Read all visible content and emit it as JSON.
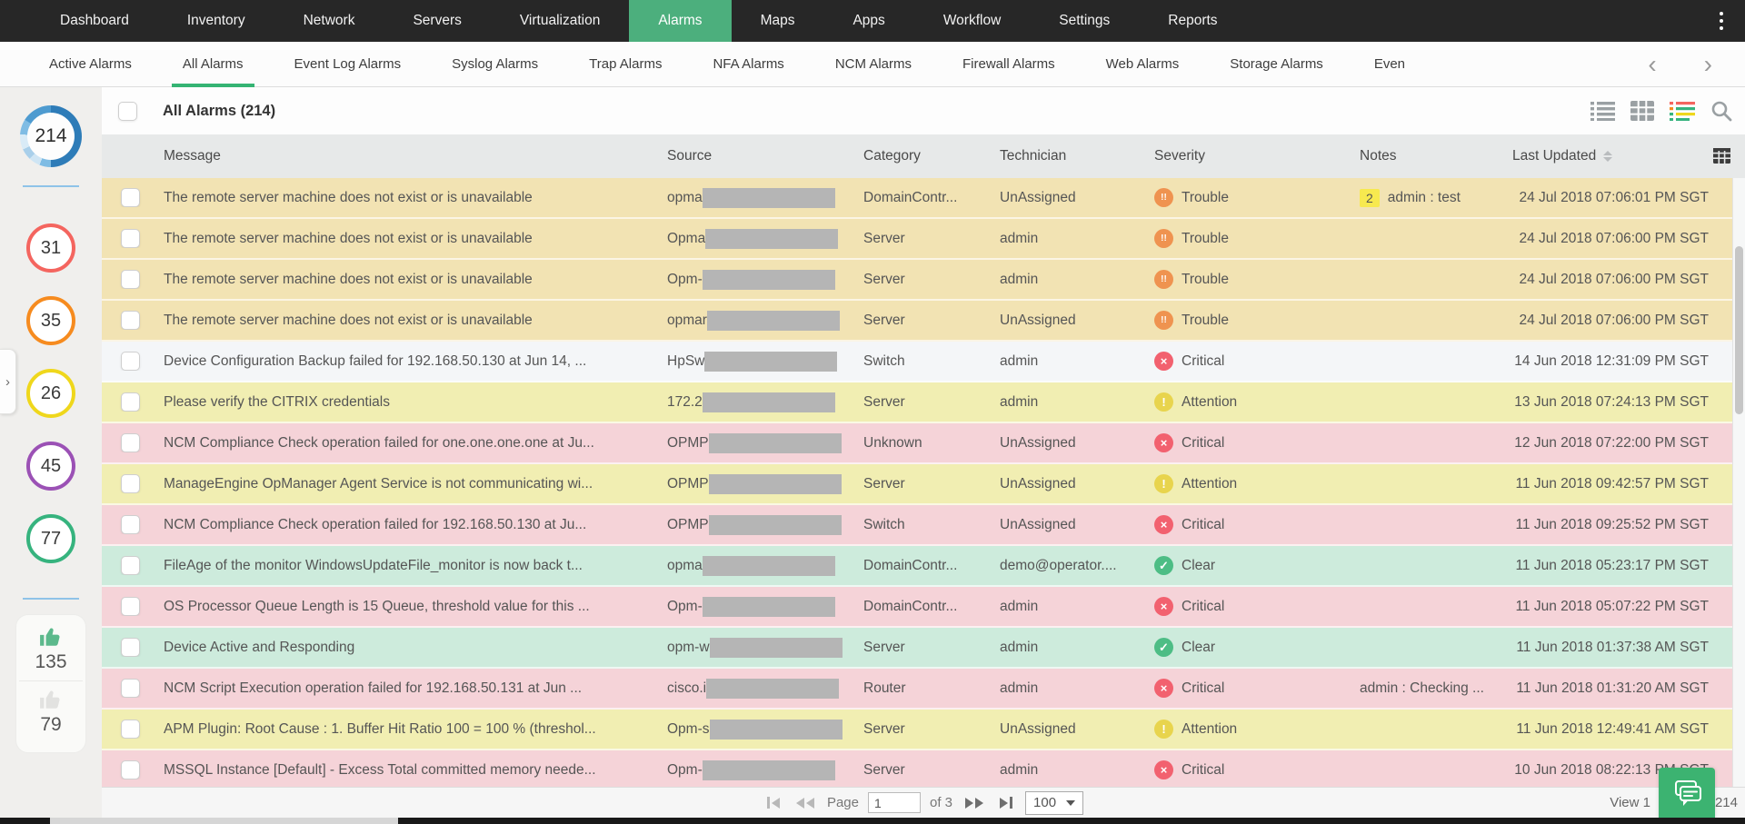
{
  "app": {
    "accent_green": "#4CAF7D"
  },
  "topnav": {
    "items": [
      "Dashboard",
      "Inventory",
      "Network",
      "Servers",
      "Virtualization",
      "Alarms",
      "Maps",
      "Apps",
      "Workflow",
      "Settings",
      "Reports"
    ],
    "active": "Alarms"
  },
  "tabbar": {
    "items": [
      "Active Alarms",
      "All Alarms",
      "Event Log Alarms",
      "Syslog Alarms",
      "Trap Alarms",
      "NFA Alarms",
      "NCM Alarms",
      "Firewall Alarms",
      "Web Alarms",
      "Storage Alarms",
      "Even"
    ],
    "active": "All Alarms",
    "scroll_left": "‹",
    "scroll_right": "›"
  },
  "sidebar": {
    "total_alarms": "214",
    "donut_colors": [
      "#2E7CB8",
      "#7FBCE4",
      "#CFE5F4",
      "#A9CFEA",
      "#D9EBF7",
      "#4E9BD0"
    ],
    "counters": [
      {
        "name": "critical",
        "value": "31",
        "color": "#F4655F"
      },
      {
        "name": "trouble",
        "value": "35",
        "color": "#F68B1F"
      },
      {
        "name": "attention",
        "value": "26",
        "color": "#EFD71C"
      },
      {
        "name": "service-down",
        "value": "45",
        "color": "#9B51B5"
      },
      {
        "name": "clear",
        "value": "77",
        "color": "#36B37E"
      }
    ],
    "acknowledged_count": "135",
    "unacknowledged_count": "79"
  },
  "toolbar": {
    "title": "All Alarms (214)"
  },
  "table": {
    "columns": [
      "Message",
      "Source",
      "Category",
      "Technician",
      "Severity",
      "Notes",
      "Last Updated"
    ],
    "severity_styles": {
      "Trouble": {
        "icon_color": "#EF9350",
        "glyph": "!!"
      },
      "Critical": {
        "icon_color": "#F2616F",
        "glyph": "×"
      },
      "Attention": {
        "icon_color": "#E8D44D",
        "glyph": "!"
      },
      "Clear": {
        "icon_color": "#4DBD85",
        "glyph": "✓"
      }
    },
    "rows": [
      {
        "message": "The remote server machine does not exist or is unavailable",
        "source_prefix": "opma",
        "category": "DomainContr...",
        "technician": "UnAssigned",
        "severity": "Trouble",
        "notes_badge": "2",
        "notes": "admin : test",
        "last_updated": "24 Jul 2018 07:06:01 PM SGT",
        "row_bg": "#F2E3B3"
      },
      {
        "message": "The remote server machine does not exist or is unavailable",
        "source_prefix": "Opma",
        "category": "Server",
        "technician": "admin",
        "severity": "Trouble",
        "notes_badge": "",
        "notes": "",
        "last_updated": "24 Jul 2018 07:06:00 PM SGT",
        "row_bg": "#F2E3B3"
      },
      {
        "message": "The remote server machine does not exist or is unavailable",
        "source_prefix": "Opm-",
        "category": "Server",
        "technician": "admin",
        "severity": "Trouble",
        "notes_badge": "",
        "notes": "",
        "last_updated": "24 Jul 2018 07:06:00 PM SGT",
        "row_bg": "#F2E3B3"
      },
      {
        "message": "The remote server machine does not exist or is unavailable",
        "source_prefix": "opmar",
        "category": "Server",
        "technician": "UnAssigned",
        "severity": "Trouble",
        "notes_badge": "",
        "notes": "",
        "last_updated": "24 Jul 2018 07:06:00 PM SGT",
        "row_bg": "#F2E3B3"
      },
      {
        "message": "Device Configuration Backup failed for 192.168.50.130 at Jun 14, ...",
        "source_prefix": "HpSw",
        "category": "Switch",
        "technician": "admin",
        "severity": "Critical",
        "notes_badge": "",
        "notes": "",
        "last_updated": "14 Jun 2018 12:31:09 PM SGT",
        "row_bg": "#F4F6F8"
      },
      {
        "message": "Please verify the CITRIX credentials",
        "source_prefix": "172.2",
        "category": "Server",
        "technician": "admin",
        "severity": "Attention",
        "notes_badge": "",
        "notes": "",
        "last_updated": "13 Jun 2018 07:24:13 PM SGT",
        "row_bg": "#F1EEB2"
      },
      {
        "message": "NCM Compliance Check operation failed for one.one.one.one at Ju...",
        "source_prefix": "OPMP",
        "category": "Unknown",
        "technician": "UnAssigned",
        "severity": "Critical",
        "notes_badge": "",
        "notes": "",
        "last_updated": "12 Jun 2018 07:22:00 PM SGT",
        "row_bg": "#F5D3D8"
      },
      {
        "message": "ManageEngine OpManager Agent Service is not communicating wi...",
        "source_prefix": "OPMP",
        "category": "Server",
        "technician": "UnAssigned",
        "severity": "Attention",
        "notes_badge": "",
        "notes": "",
        "last_updated": "11 Jun 2018 09:42:57 PM SGT",
        "row_bg": "#F1EEB2"
      },
      {
        "message": "NCM Compliance Check operation failed for 192.168.50.130 at Ju...",
        "source_prefix": "OPMP",
        "category": "Switch",
        "technician": "UnAssigned",
        "severity": "Critical",
        "notes_badge": "",
        "notes": "",
        "last_updated": "11 Jun 2018 09:25:52 PM SGT",
        "row_bg": "#F5D3D8"
      },
      {
        "message": "FileAge of the monitor WindowsUpdateFile_monitor is now back t...",
        "source_prefix": "opma",
        "category": "DomainContr...",
        "technician": "demo@operator....",
        "severity": "Clear",
        "notes_badge": "",
        "notes": "",
        "last_updated": "11 Jun 2018 05:23:17 PM SGT",
        "row_bg": "#CDEBDC"
      },
      {
        "message": "OS Processor Queue Length is 15 Queue, threshold value for this ...",
        "source_prefix": "Opm-",
        "category": "DomainContr...",
        "technician": "admin",
        "severity": "Critical",
        "notes_badge": "",
        "notes": "",
        "last_updated": "11 Jun 2018 05:07:22 PM SGT",
        "row_bg": "#F5D3D8"
      },
      {
        "message": "Device Active and Responding",
        "source_prefix": "opm-w",
        "category": "Server",
        "technician": "admin",
        "severity": "Clear",
        "notes_badge": "",
        "notes": "",
        "last_updated": "11 Jun 2018 01:37:38 AM SGT",
        "row_bg": "#CDEBDC"
      },
      {
        "message": "NCM Script Execution operation failed for 192.168.50.131 at Jun ...",
        "source_prefix": "cisco.i",
        "category": "Router",
        "technician": "admin",
        "severity": "Critical",
        "notes_badge": "",
        "notes": "admin : Checking ...",
        "last_updated": "11 Jun 2018 01:31:20 AM SGT",
        "row_bg": "#F5D3D8"
      },
      {
        "message": "APM Plugin: Root Cause : 1. Buffer Hit Ratio 100 = 100 % (threshol...",
        "source_prefix": "Opm-s",
        "category": "Server",
        "technician": "UnAssigned",
        "severity": "Attention",
        "notes_badge": "",
        "notes": "",
        "last_updated": "11 Jun 2018 12:49:41 AM SGT",
        "row_bg": "#F1EEB2"
      },
      {
        "message": "MSSQL Instance [Default] - Excess Total committed memory neede...",
        "source_prefix": "Opm-",
        "category": "Server",
        "technician": "admin",
        "severity": "Critical",
        "notes_badge": "",
        "notes": "",
        "last_updated": "10 Jun 2018 08:22:13 PM SGT",
        "row_bg": "#F5D3D8"
      }
    ]
  },
  "pagination": {
    "page_label": "Page",
    "page_value": "1",
    "of_label": "of 3",
    "page_size": "100"
  },
  "footer": {
    "view_left": "View 1",
    "view_right": "214"
  }
}
